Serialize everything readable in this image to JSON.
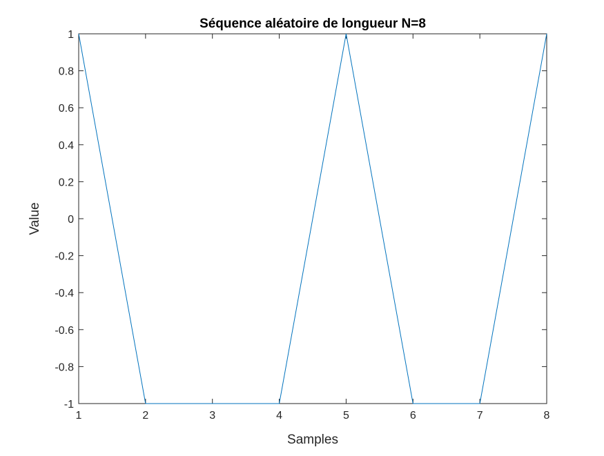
{
  "chart_data": {
    "type": "line",
    "title": "Séquence aléatoire de longueur N=8",
    "xlabel": "Samples",
    "ylabel": "Value",
    "x": [
      1,
      2,
      3,
      4,
      5,
      6,
      7,
      8
    ],
    "series": [
      {
        "values": [
          1,
          -1,
          -1,
          -1,
          1,
          -1,
          -1,
          1
        ],
        "color": "#0072BD"
      }
    ],
    "xlim": [
      1,
      8
    ],
    "ylim": [
      -1,
      1
    ],
    "xticks": [
      1,
      2,
      3,
      4,
      5,
      6,
      7,
      8
    ],
    "xtick_labels": [
      "1",
      "2",
      "3",
      "4",
      "5",
      "6",
      "7",
      "8"
    ],
    "yticks": [
      -1,
      -0.8,
      -0.6,
      -0.4,
      -0.2,
      0,
      0.2,
      0.4,
      0.6,
      0.8,
      1
    ],
    "ytick_labels": [
      "-1",
      "-0.8",
      "-0.6",
      "-0.4",
      "-0.2",
      "0",
      "0.2",
      "0.4",
      "0.6",
      "0.8",
      "1"
    ],
    "grid": false,
    "box": true
  }
}
